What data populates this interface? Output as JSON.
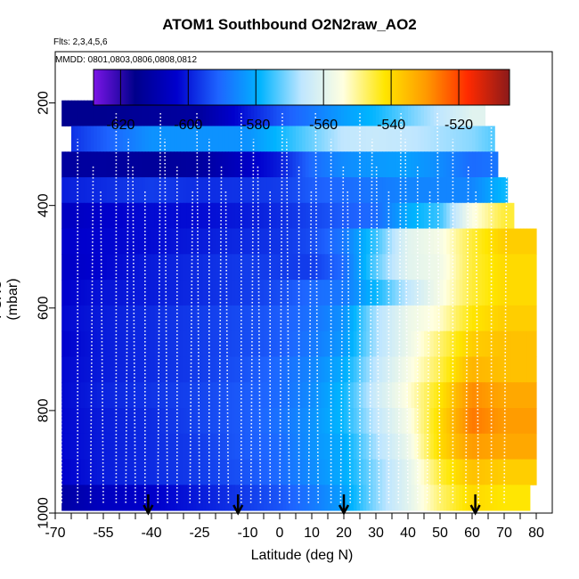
{
  "chart_data": {
    "type": "heatmap",
    "title": "ATOM1 Southbound O2N2raw_AO2",
    "flights_note": "Flts: 2,3,4,5,6",
    "dates_note": "MMDD: 0801,0803,0806,0808,0812",
    "xlabel": "Latitude (deg N)",
    "ylabel": "PSXC (mbar)",
    "xlim": [
      -70,
      85
    ],
    "ylim": [
      1000,
      100
    ],
    "x_ticks": [
      -70,
      -55,
      -40,
      -25,
      -10,
      0,
      10,
      20,
      30,
      40,
      50,
      60,
      70,
      80
    ],
    "x_minor_ticks": [
      -65,
      -60,
      -50,
      -45,
      -35,
      -30,
      -20,
      -15,
      -5,
      5,
      15,
      25,
      35,
      45,
      55,
      65,
      75
    ],
    "y_ticks": [
      200,
      400,
      600,
      800,
      1000
    ],
    "colorbar": {
      "range": [
        -628,
        -505
      ],
      "ticks": [
        -620,
        -600,
        -580,
        -560,
        -540,
        -520
      ],
      "colors": [
        "#7b15e6",
        "#00008b",
        "#0000cd",
        "#1e64ff",
        "#00b4ff",
        "#bfe6ff",
        "#ffffe0",
        "#ffe600",
        "#ff9900",
        "#ff2a00",
        "#8b1a1a"
      ]
    },
    "arrows_latitude": [
      -41,
      -13,
      20,
      61
    ],
    "pressure_levels": [
      220,
      270,
      320,
      370,
      420,
      470,
      520,
      570,
      620,
      670,
      720,
      770,
      820,
      870,
      920,
      970
    ],
    "row_extents": [
      [
        -68,
        64
      ],
      [
        -65,
        67
      ],
      [
        -68,
        68
      ],
      [
        -68,
        71
      ],
      [
        -68,
        73
      ],
      [
        -68,
        80
      ],
      [
        -68,
        80
      ],
      [
        -68,
        80
      ],
      [
        -68,
        80
      ],
      [
        -68,
        80
      ],
      [
        -68,
        80
      ],
      [
        -68,
        80
      ],
      [
        -68,
        80
      ],
      [
        -68,
        80
      ],
      [
        -68,
        80
      ],
      [
        -68,
        78
      ]
    ],
    "lat_nodes": [
      -70,
      -55,
      -40,
      -25,
      -10,
      0,
      10,
      20,
      30,
      40,
      50,
      60,
      70,
      80
    ],
    "value_grid": [
      [
        -615,
        -615,
        -613,
        -612,
        -600,
        -593,
        -588,
        -582,
        -578,
        -572,
        -566,
        -560,
        -560,
        -560
      ],
      [
        -600,
        -592,
        -584,
        -584,
        -584,
        -578,
        -572,
        -566,
        -565,
        -566,
        -568,
        -570,
        -575,
        -575
      ],
      [
        -612,
        -612,
        -613,
        -612,
        -605,
        -600,
        -590,
        -585,
        -583,
        -582,
        -585,
        -590,
        -588,
        -588
      ],
      [
        -600,
        -598,
        -596,
        -598,
        -597,
        -596,
        -592,
        -590,
        -588,
        -586,
        -586,
        -586,
        -578,
        -578
      ],
      [
        -606,
        -604,
        -602,
        -602,
        -600,
        -598,
        -595,
        -592,
        -590,
        -580,
        -575,
        -555,
        -545,
        -545
      ],
      [
        -604,
        -603,
        -602,
        -600,
        -598,
        -597,
        -594,
        -588,
        -575,
        -560,
        -556,
        -545,
        -538,
        -538
      ],
      [
        -605,
        -603,
        -600,
        -598,
        -596,
        -596,
        -596,
        -590,
        -573,
        -560,
        -557,
        -545,
        -540,
        -540
      ],
      [
        -604,
        -601,
        -600,
        -598,
        -596,
        -594,
        -590,
        -588,
        -578,
        -566,
        -556,
        -545,
        -540,
        -540
      ],
      [
        -603,
        -600,
        -598,
        -596,
        -594,
        -592,
        -589,
        -584,
        -568,
        -558,
        -553,
        -542,
        -538,
        -538
      ],
      [
        -604,
        -600,
        -598,
        -596,
        -594,
        -592,
        -588,
        -583,
        -568,
        -558,
        -548,
        -538,
        -536,
        -536
      ],
      [
        -603,
        -600,
        -598,
        -596,
        -593,
        -590,
        -586,
        -580,
        -566,
        -556,
        -546,
        -534,
        -536,
        -536
      ],
      [
        -603,
        -599,
        -597,
        -595,
        -592,
        -590,
        -585,
        -578,
        -564,
        -554,
        -542,
        -528,
        -532,
        -532
      ],
      [
        -603,
        -600,
        -598,
        -595,
        -592,
        -589,
        -584,
        -578,
        -566,
        -556,
        -540,
        -526,
        -530,
        -530
      ],
      [
        -603,
        -600,
        -598,
        -596,
        -592,
        -590,
        -584,
        -580,
        -568,
        -558,
        -540,
        -530,
        -532,
        -532
      ],
      [
        -604,
        -600,
        -598,
        -596,
        -593,
        -590,
        -585,
        -580,
        -570,
        -560,
        -545,
        -536,
        -538,
        -538
      ],
      [
        -612,
        -606,
        -604,
        -600,
        -596,
        -593,
        -588,
        -582,
        -570,
        -560,
        -548,
        -540,
        -542,
        -542
      ]
    ],
    "profile_lats": [
      -68,
      -63,
      -59,
      -55,
      -51,
      -48,
      -45,
      -42,
      -38,
      -35,
      -32,
      -28,
      -25,
      -22,
      -19,
      -16,
      -12,
      -9,
      -6,
      -3,
      0,
      3,
      6,
      9,
      12,
      16,
      19,
      22,
      25,
      28,
      31,
      34,
      37,
      40,
      43,
      46,
      50,
      54,
      58,
      62,
      66,
      70
    ]
  }
}
